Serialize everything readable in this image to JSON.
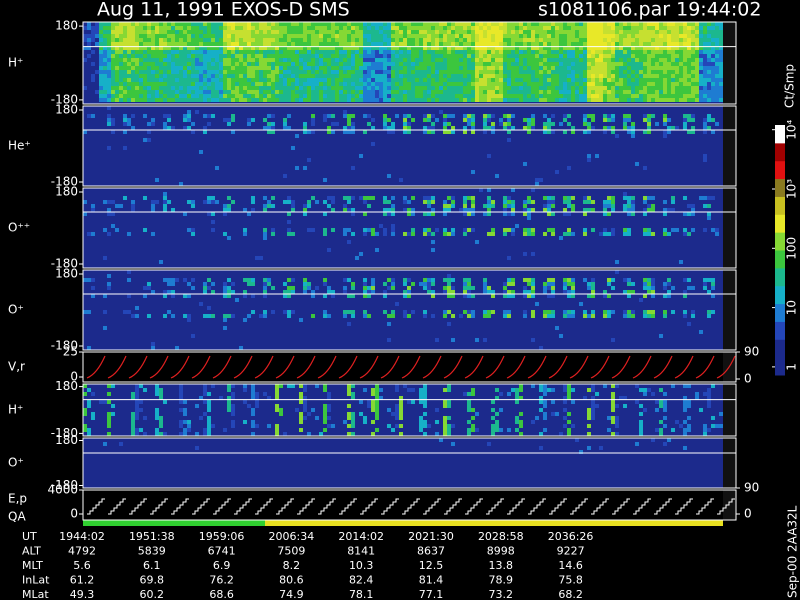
{
  "chart_data": {
    "type": "spectrogram",
    "title": "Aug 11, 1991   EXOS-D SMS",
    "subtitle": "s1081106.par  19:44:02",
    "side_note": "Sep-00  2AA32L",
    "panels": [
      {
        "label": "H⁺",
        "ylim": [
          -200,
          200
        ],
        "yticks": [
          180,
          -180
        ]
      },
      {
        "label": "He⁺",
        "ylim": [
          -200,
          200
        ],
        "yticks": [
          180,
          -180
        ]
      },
      {
        "label": "O⁺⁺",
        "ylim": [
          -200,
          200
        ],
        "yticks": [
          180,
          -180
        ]
      },
      {
        "label": "O⁺",
        "ylim": [
          -200,
          200
        ],
        "yticks": [
          180,
          -180
        ]
      },
      {
        "label": "V,r",
        "ylim": [
          -5,
          25
        ],
        "yticks": [
          25,
          0
        ],
        "y2lim": [
          -10,
          90
        ],
        "y2ticks": [
          90,
          0
        ]
      },
      {
        "label": "H⁺",
        "ylim": [
          -200,
          200
        ],
        "yticks": [
          180,
          -180
        ]
      },
      {
        "label": "O⁺",
        "ylim": [
          -200,
          200
        ],
        "yticks": [
          180,
          -180
        ],
        "y2lim": [
          90,
          190
        ],
        "y2ticks": [
          90
        ]
      },
      {
        "label": "E,p",
        "label2": "QA",
        "ylim": [
          -1000,
          4000
        ],
        "yticks": [
          4000,
          0
        ],
        "y2lim": [
          -20,
          80
        ],
        "y2ticks": [
          0
        ]
      }
    ],
    "colorbar": {
      "label": "Ct/Smp",
      "log": true,
      "clim": [
        0.73,
        12000
      ],
      "ticks": [
        1,
        10,
        100,
        {
          "value": 1000,
          "label": "10³"
        },
        {
          "value": 10000,
          "label": "10⁴"
        }
      ]
    },
    "table": {
      "row_labels": [
        "UT",
        "ALT",
        "MLT",
        "InLat",
        "MLat"
      ],
      "rows": [
        [
          "1944:02",
          "1951:38",
          "1959:06",
          "2006:34",
          "2014:02",
          "2021:30",
          "2028:58",
          "2036:26"
        ],
        [
          4792,
          5839,
          6741,
          7509,
          8141,
          8637,
          8998,
          9227
        ],
        [
          5.6,
          6.1,
          6.9,
          8.2,
          10.3,
          12.5,
          13.8,
          14.6
        ],
        [
          61.2,
          69.8,
          76.2,
          80.6,
          82.4,
          81.4,
          78.9,
          75.8
        ],
        [
          49.3,
          60.2,
          68.6,
          74.9,
          78.1,
          77.1,
          73.2,
          68.2
        ]
      ]
    }
  }
}
